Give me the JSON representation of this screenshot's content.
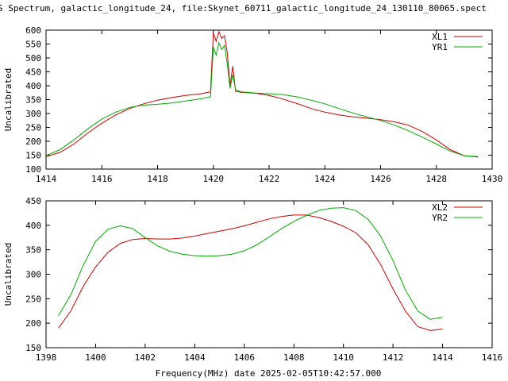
{
  "title": "S Spectrum, galactic_longitude_24, file:Skynet_60711_galactic_longitude_24_130110_80065.spect",
  "xlabel": "Frequency(MHz) date 2025-02-05T10:42:57.000",
  "colors": {
    "red": "#cc0000",
    "green": "#00aa00"
  },
  "chart_data": [
    {
      "type": "line",
      "ylabel": "Uncalibrated",
      "xlim": [
        1414,
        1430
      ],
      "ylim": [
        100,
        600
      ],
      "xticks": [
        1414,
        1416,
        1418,
        1420,
        1422,
        1424,
        1426,
        1428,
        1430
      ],
      "yticks": [
        100,
        150,
        200,
        250,
        300,
        350,
        400,
        450,
        500,
        550,
        600
      ],
      "grid": false,
      "legend_position": "top-right",
      "series": [
        {
          "name": "XL1",
          "color": "red",
          "x": [
            1414.0,
            1414.5,
            1415.0,
            1415.5,
            1416.0,
            1416.5,
            1417.0,
            1417.5,
            1418.0,
            1418.5,
            1419.0,
            1419.5,
            1419.9,
            1420.0,
            1420.1,
            1420.2,
            1420.3,
            1420.4,
            1420.5,
            1420.6,
            1420.7,
            1420.8,
            1421.0,
            1421.5,
            1422.0,
            1422.5,
            1423.0,
            1423.5,
            1424.0,
            1424.5,
            1425.0,
            1425.5,
            1426.0,
            1426.5,
            1427.0,
            1427.5,
            1428.0,
            1428.5,
            1429.0,
            1429.5
          ],
          "y": [
            145,
            160,
            190,
            230,
            265,
            295,
            318,
            335,
            348,
            357,
            365,
            370,
            378,
            590,
            560,
            595,
            570,
            580,
            520,
            400,
            470,
            380,
            376,
            373,
            365,
            352,
            336,
            318,
            305,
            295,
            288,
            283,
            278,
            270,
            258,
            235,
            205,
            170,
            148,
            143
          ]
        },
        {
          "name": "YR1",
          "color": "green",
          "x": [
            1414.0,
            1414.5,
            1415.0,
            1415.5,
            1416.0,
            1416.5,
            1417.0,
            1417.5,
            1418.0,
            1418.5,
            1419.0,
            1419.5,
            1419.9,
            1420.0,
            1420.1,
            1420.2,
            1420.3,
            1420.4,
            1420.5,
            1420.6,
            1420.7,
            1420.8,
            1421.0,
            1421.5,
            1422.0,
            1422.5,
            1423.0,
            1423.5,
            1424.0,
            1424.5,
            1425.0,
            1425.5,
            1426.0,
            1426.5,
            1427.0,
            1427.5,
            1428.0,
            1428.5,
            1429.0,
            1429.5
          ],
          "y": [
            148,
            170,
            205,
            245,
            280,
            305,
            322,
            330,
            333,
            338,
            345,
            352,
            360,
            540,
            510,
            555,
            530,
            545,
            480,
            390,
            440,
            385,
            378,
            374,
            371,
            368,
            360,
            348,
            335,
            318,
            302,
            288,
            275,
            258,
            238,
            215,
            190,
            165,
            148,
            145
          ]
        }
      ]
    },
    {
      "type": "line",
      "ylabel": "Uncalibrated",
      "xlim": [
        1398,
        1416
      ],
      "ylim": [
        150,
        450
      ],
      "xticks": [
        1398,
        1400,
        1402,
        1404,
        1406,
        1408,
        1410,
        1412,
        1414,
        1416
      ],
      "yticks": [
        150,
        200,
        250,
        300,
        350,
        400,
        450
      ],
      "grid": false,
      "legend_position": "top-right",
      "series": [
        {
          "name": "XL2",
          "color": "red",
          "x": [
            1398.5,
            1399.0,
            1399.5,
            1400.0,
            1400.5,
            1401.0,
            1401.5,
            1402.0,
            1402.5,
            1403.0,
            1403.5,
            1404.0,
            1404.5,
            1405.0,
            1405.5,
            1406.0,
            1406.5,
            1407.0,
            1407.5,
            1408.0,
            1408.5,
            1409.0,
            1409.5,
            1410.0,
            1410.5,
            1411.0,
            1411.5,
            1412.0,
            1412.5,
            1413.0,
            1413.5,
            1414.0
          ],
          "y": [
            190,
            225,
            275,
            315,
            345,
            363,
            371,
            373,
            372,
            372,
            374,
            378,
            383,
            388,
            393,
            399,
            406,
            413,
            418,
            421,
            421,
            416,
            408,
            398,
            385,
            360,
            320,
            270,
            225,
            193,
            185,
            188
          ]
        },
        {
          "name": "YR2",
          "color": "green",
          "x": [
            1398.5,
            1399.0,
            1399.5,
            1400.0,
            1400.5,
            1401.0,
            1401.5,
            1402.0,
            1402.5,
            1403.0,
            1403.5,
            1404.0,
            1404.5,
            1405.0,
            1405.5,
            1406.0,
            1406.5,
            1407.0,
            1407.5,
            1408.0,
            1408.5,
            1409.0,
            1409.5,
            1410.0,
            1410.5,
            1411.0,
            1411.5,
            1412.0,
            1412.5,
            1413.0,
            1413.5,
            1414.0
          ],
          "y": [
            215,
            258,
            318,
            367,
            392,
            399,
            393,
            375,
            358,
            347,
            341,
            338,
            337,
            338,
            341,
            348,
            360,
            376,
            393,
            408,
            420,
            430,
            435,
            436,
            430,
            412,
            378,
            328,
            268,
            225,
            208,
            212
          ]
        }
      ]
    }
  ]
}
